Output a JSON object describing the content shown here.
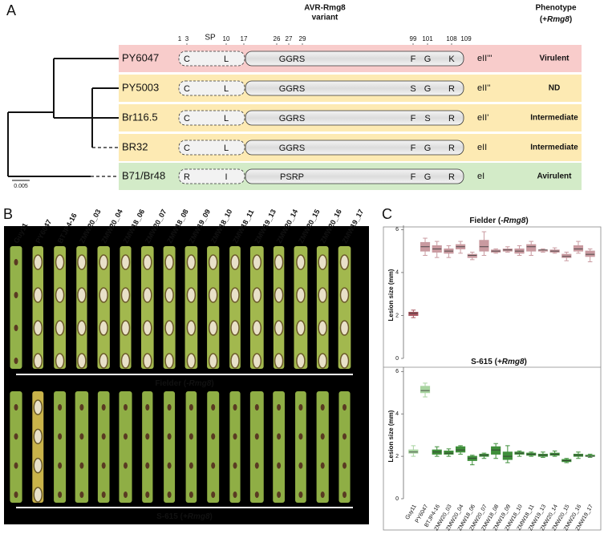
{
  "panel_a": {
    "label": "A",
    "header": {
      "variant": [
        "AVR-Rmg8",
        "variant"
      ],
      "phenotype": "Phenotype",
      "phenotype_sub": [
        "(+",
        "Rmg8",
        ")"
      ]
    },
    "positions": [
      "1",
      "3",
      "SP",
      "10",
      "17",
      "26",
      "27",
      "29",
      "99",
      "101",
      "108",
      "109"
    ],
    "scale_bar": "0.005",
    "rows": [
      {
        "name": "PY6047",
        "residues": [
          "C",
          "L",
          "GGRS",
          "F",
          "G",
          "K"
        ],
        "allele": "eII'''",
        "phenotype": "Virulent",
        "background": "#f8cccb",
        "color": "#b3302f"
      },
      {
        "name": "PY5003",
        "residues": [
          "C",
          "L",
          "GGRS",
          "S",
          "G",
          "R"
        ],
        "allele": "eII''",
        "phenotype": "ND",
        "background": "#fdeab3",
        "color": "#b3302f"
      },
      {
        "name": "Br116.5",
        "residues": [
          "C",
          "L",
          "GGRS",
          "F",
          "S",
          "R"
        ],
        "allele": "eII'",
        "phenotype": "Intermediate",
        "background": "#fdeab3",
        "color": "#b3302f"
      },
      {
        "name": "BR32",
        "residues": [
          "C",
          "L",
          "GGRS",
          "F",
          "G",
          "R"
        ],
        "allele": "eII",
        "phenotype": "Intermediate",
        "background": "#fdeab3",
        "color": "#b3302f"
      },
      {
        "name": "B71/Br48",
        "residues": [
          "R",
          "I",
          "PSRP",
          "F",
          "G",
          "R"
        ],
        "allele": "eI",
        "phenotype": "Avirulent",
        "background": "#d3ebc8",
        "color": "#2f8a3a"
      }
    ]
  },
  "panel_b": {
    "label": "B",
    "strains": [
      "Guy11",
      "PY6047",
      "BTJP4-16",
      "ZMW20_03",
      "ZMW20_04",
      "ZMW18_06",
      "ZMW20_07",
      "ZMW18_08",
      "ZMW19_09",
      "ZMW18_10",
      "ZMW18_11",
      "ZMW19_13",
      "ZMW20_14",
      "ZMW20_15",
      "ZMW20_16",
      "ZMW19_17"
    ],
    "top_caption": [
      "Fielder (",
      "-Rmg8",
      ")"
    ],
    "bottom_caption": [
      "S-615 (",
      "+Rmg8",
      ")"
    ]
  },
  "panel_c_label": "C",
  "chart_data": [
    {
      "type": "box",
      "title_parts": [
        "Fielder (",
        "-Rmg8",
        ")"
      ],
      "ylabel": "Lesion size (mm)",
      "ylim": [
        0,
        6.2
      ],
      "yticks": [
        0,
        2,
        4,
        6
      ],
      "colors": [
        "#a8545f",
        "#c99aa0",
        "#c99aa0",
        "#c99aa0",
        "#c99aa0",
        "#c99aa0",
        "#c99aa0",
        "#c99aa0",
        "#c99aa0",
        "#c99aa0",
        "#c99aa0",
        "#c99aa0",
        "#c99aa0",
        "#c99aa0",
        "#c99aa0",
        "#c99aa0"
      ],
      "values": [
        {
          "min": 1.9,
          "q1": 2.0,
          "median": 2.1,
          "q3": 2.15,
          "max": 2.25
        },
        {
          "min": 4.8,
          "q1": 5.0,
          "median": 5.2,
          "q3": 5.4,
          "max": 5.6
        },
        {
          "min": 4.7,
          "q1": 4.95,
          "median": 5.1,
          "q3": 5.25,
          "max": 5.45
        },
        {
          "min": 4.7,
          "q1": 4.9,
          "median": 5.0,
          "q3": 5.1,
          "max": 5.25
        },
        {
          "min": 4.9,
          "q1": 5.1,
          "median": 5.2,
          "q3": 5.3,
          "max": 5.45
        },
        {
          "min": 4.6,
          "q1": 4.7,
          "median": 4.8,
          "q3": 4.85,
          "max": 4.95
        },
        {
          "min": 4.8,
          "q1": 5.0,
          "median": 5.2,
          "q3": 5.5,
          "max": 5.9
        },
        {
          "min": 4.9,
          "q1": 4.95,
          "median": 5.0,
          "q3": 5.05,
          "max": 5.1
        },
        {
          "min": 4.95,
          "q1": 5.0,
          "median": 5.05,
          "q3": 5.1,
          "max": 5.2
        },
        {
          "min": 4.8,
          "q1": 4.9,
          "median": 5.0,
          "q3": 5.1,
          "max": 5.25
        },
        {
          "min": 4.8,
          "q1": 5.0,
          "median": 5.2,
          "q3": 5.3,
          "max": 5.45
        },
        {
          "min": 4.95,
          "q1": 5.0,
          "median": 5.05,
          "q3": 5.05,
          "max": 5.1
        },
        {
          "min": 4.9,
          "q1": 4.95,
          "median": 5.0,
          "q3": 5.05,
          "max": 5.15
        },
        {
          "min": 4.55,
          "q1": 4.7,
          "median": 4.75,
          "q3": 4.85,
          "max": 4.95
        },
        {
          "min": 4.9,
          "q1": 5.0,
          "median": 5.1,
          "q3": 5.25,
          "max": 5.45
        },
        {
          "min": 4.5,
          "q1": 4.75,
          "median": 4.85,
          "q3": 5.0,
          "max": 5.1
        }
      ]
    },
    {
      "type": "box",
      "title_parts": [
        "S-615 (",
        "+Rmg8",
        ")"
      ],
      "ylabel": "Lesion size (mm)",
      "ylim": [
        0,
        6.2
      ],
      "yticks": [
        0,
        2,
        4,
        6
      ],
      "categories": [
        "Guy11",
        "PY6047",
        "BTJP4-16",
        "ZMW20_03",
        "ZMW20_04",
        "ZMW18_06",
        "ZMW20_07",
        "ZMW18_08",
        "ZMW19_09",
        "ZMW18_10",
        "ZMW18_11",
        "ZMW19_13",
        "ZMW20_14",
        "ZMW20_15",
        "ZMW20_16",
        "ZMW19_17"
      ],
      "colors": [
        "#a8d4a0",
        "#a8d4a0",
        "#3f8f3a",
        "#3f8f3a",
        "#3f8f3a",
        "#3f8f3a",
        "#3f8f3a",
        "#3f8f3a",
        "#3f8f3a",
        "#3f8f3a",
        "#3f8f3a",
        "#3f8f3a",
        "#3f8f3a",
        "#3f8f3a",
        "#3f8f3a",
        "#3f8f3a"
      ],
      "values": [
        {
          "min": 2.0,
          "q1": 2.15,
          "median": 2.2,
          "q3": 2.3,
          "max": 2.5
        },
        {
          "min": 4.8,
          "q1": 5.0,
          "median": 5.1,
          "q3": 5.3,
          "max": 5.45
        },
        {
          "min": 2.0,
          "q1": 2.1,
          "median": 2.2,
          "q3": 2.3,
          "max": 2.45
        },
        {
          "min": 2.0,
          "q1": 2.1,
          "median": 2.15,
          "q3": 2.25,
          "max": 2.35
        },
        {
          "min": 2.1,
          "q1": 2.2,
          "median": 2.3,
          "q3": 2.45,
          "max": 2.5
        },
        {
          "min": 1.6,
          "q1": 1.8,
          "median": 1.9,
          "q3": 2.0,
          "max": 2.05
        },
        {
          "min": 1.9,
          "q1": 2.0,
          "median": 2.05,
          "q3": 2.1,
          "max": 2.15
        },
        {
          "min": 1.9,
          "q1": 2.1,
          "median": 2.3,
          "q3": 2.45,
          "max": 2.6
        },
        {
          "min": 1.7,
          "q1": 1.85,
          "median": 2.0,
          "q3": 2.2,
          "max": 2.5
        },
        {
          "min": 2.0,
          "q1": 2.1,
          "median": 2.15,
          "q3": 2.2,
          "max": 2.25
        },
        {
          "min": 2.0,
          "q1": 2.05,
          "median": 2.1,
          "q3": 2.15,
          "max": 2.2
        },
        {
          "min": 1.95,
          "q1": 2.0,
          "median": 2.05,
          "q3": 2.1,
          "max": 2.2
        },
        {
          "min": 2.0,
          "q1": 2.05,
          "median": 2.1,
          "q3": 2.15,
          "max": 2.25
        },
        {
          "min": 1.7,
          "q1": 1.75,
          "median": 1.8,
          "q3": 1.85,
          "max": 1.9
        },
        {
          "min": 1.9,
          "q1": 2.0,
          "median": 2.05,
          "q3": 2.1,
          "max": 2.2
        },
        {
          "min": 1.95,
          "q1": 2.0,
          "median": 2.0,
          "q3": 2.05,
          "max": 2.1
        }
      ]
    }
  ]
}
